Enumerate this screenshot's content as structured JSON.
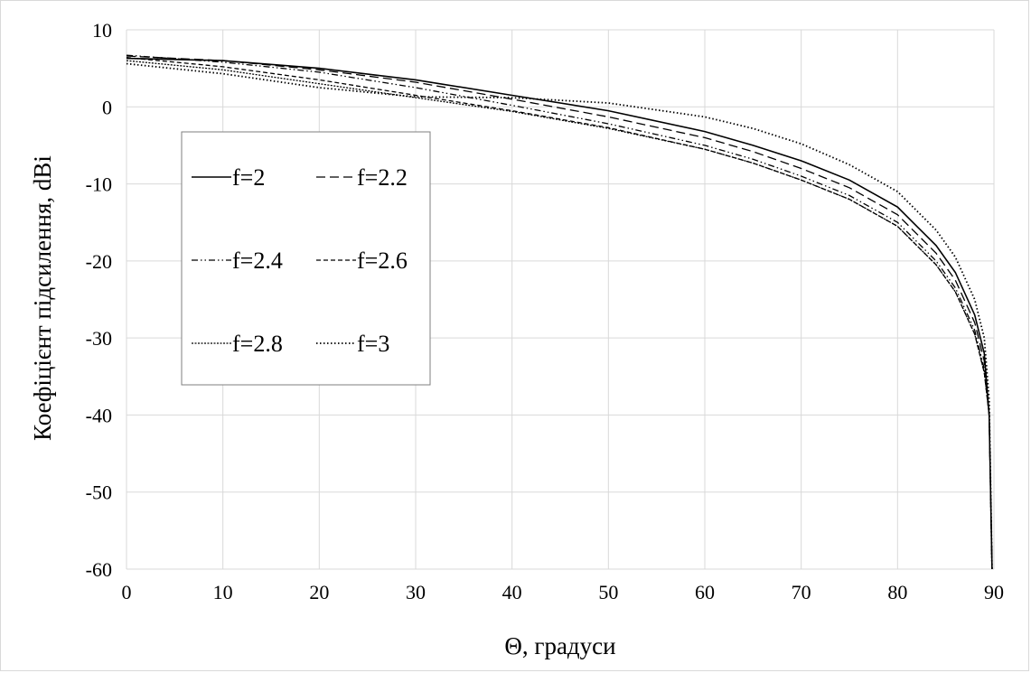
{
  "chart_data": {
    "type": "line",
    "title": "",
    "xlabel": "Θ, градуси",
    "ylabel": "Коефіцієнт підсилення, dBi",
    "xlim": [
      0,
      90
    ],
    "ylim": [
      -60,
      10
    ],
    "xticks": [
      0,
      10,
      20,
      30,
      40,
      50,
      60,
      70,
      80,
      90
    ],
    "yticks": [
      10,
      0,
      -10,
      -20,
      -30,
      -40,
      -50,
      -60
    ],
    "grid": true,
    "legend_position": "left, inside plot",
    "series": [
      {
        "name": "f=2",
        "style": "solid",
        "x": [
          0,
          10,
          20,
          30,
          40,
          50,
          60,
          65,
          70,
          75,
          80,
          84,
          86,
          88,
          89,
          89.5,
          89.8
        ],
        "y": [
          6.3,
          6.0,
          5.0,
          3.5,
          1.5,
          -0.5,
          -3.2,
          -5.0,
          -7.0,
          -9.5,
          -13.0,
          -18.0,
          -21.5,
          -27.0,
          -32.0,
          -40.0,
          -60.0
        ]
      },
      {
        "name": "f=2.2",
        "style": "dash",
        "x": [
          0,
          10,
          20,
          30,
          40,
          50,
          60,
          65,
          70,
          75,
          80,
          84,
          86,
          88,
          89,
          89.5,
          89.8
        ],
        "y": [
          6.6,
          6.0,
          4.8,
          3.2,
          1.0,
          -1.3,
          -4.0,
          -5.8,
          -8.0,
          -10.5,
          -14.0,
          -19.0,
          -22.5,
          -28.0,
          -33.0,
          -40.0,
          -60.0
        ]
      },
      {
        "name": "f=2.4",
        "style": "dashdotdot",
        "x": [
          0,
          10,
          20,
          30,
          40,
          50,
          60,
          65,
          70,
          75,
          80,
          84,
          86,
          88,
          89,
          89.5,
          89.8
        ],
        "y": [
          6.7,
          5.8,
          4.5,
          2.5,
          0.2,
          -2.2,
          -5.0,
          -6.8,
          -9.0,
          -11.5,
          -15.0,
          -20.0,
          -23.5,
          -29.0,
          -34.0,
          -40.0,
          -60.0
        ]
      },
      {
        "name": "f=2.6",
        "style": "shortdash",
        "x": [
          0,
          10,
          20,
          30,
          40,
          50,
          60,
          65,
          70,
          75,
          80,
          84,
          86,
          88,
          89,
          89.5,
          89.8
        ],
        "y": [
          6.4,
          5.2,
          3.5,
          1.5,
          -0.5,
          -2.7,
          -5.5,
          -7.3,
          -9.5,
          -12.0,
          -15.5,
          -20.5,
          -24.0,
          -29.5,
          -34.5,
          -40.0,
          -60.0
        ]
      },
      {
        "name": "f=2.8",
        "style": "finedash",
        "x": [
          0,
          10,
          20,
          30,
          40,
          50,
          60,
          65,
          70,
          75,
          80,
          84,
          86,
          88,
          89,
          89.5,
          89.8
        ],
        "y": [
          6.0,
          4.8,
          3.0,
          1.2,
          -0.6,
          -2.8,
          -5.5,
          -7.3,
          -9.5,
          -12.0,
          -15.5,
          -20.5,
          -24.0,
          -29.5,
          -34.5,
          -40.0,
          -60.0
        ]
      },
      {
        "name": "f=3",
        "style": "dot",
        "x": [
          0,
          10,
          20,
          30,
          40,
          50,
          60,
          65,
          70,
          75,
          80,
          84,
          86,
          88,
          89,
          89.5,
          89.8
        ],
        "y": [
          5.6,
          4.3,
          2.5,
          1.3,
          1.2,
          0.5,
          -1.3,
          -2.8,
          -4.8,
          -7.5,
          -11.0,
          -16.0,
          -19.5,
          -25.0,
          -30.0,
          -38.0,
          -60.0
        ]
      }
    ]
  }
}
